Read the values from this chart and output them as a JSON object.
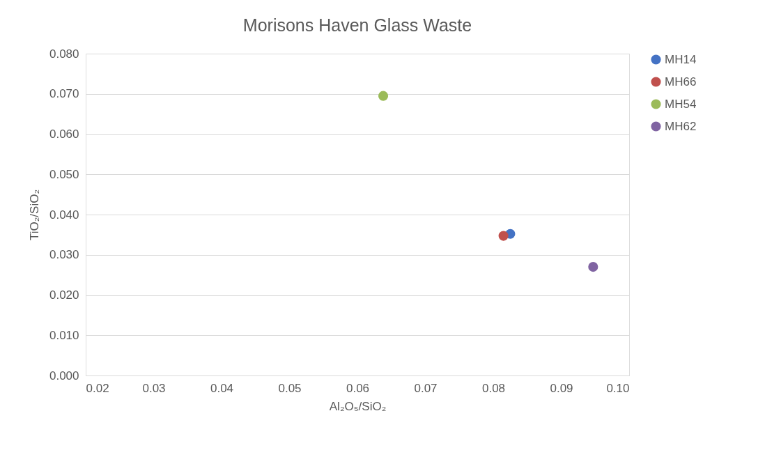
{
  "chart_data": {
    "type": "scatter",
    "title": "Morisons Haven Glass Waste",
    "xlabel": "Al₂O₅/SiO₂",
    "ylabel": "TiO₂/SiO₂",
    "series": [
      {
        "name": "MH14",
        "color": "#4472c4",
        "x": [
          0.0825
        ],
        "values": [
          0.0352
        ]
      },
      {
        "name": "MH66",
        "color": "#c0504d",
        "x": [
          0.0815
        ],
        "values": [
          0.0347
        ]
      },
      {
        "name": "MH54",
        "color": "#9bbb59",
        "x": [
          0.0638
        ],
        "values": [
          0.0695
        ]
      },
      {
        "name": "MH62",
        "color": "#8064a2",
        "x": [
          0.0947
        ],
        "values": [
          0.027
        ]
      }
    ],
    "xlim": [
      0.02,
      0.1
    ],
    "xticks": [
      {
        "value": 0.02,
        "label": "0.02"
      },
      {
        "value": 0.03,
        "label": "0.03"
      },
      {
        "value": 0.04,
        "label": "0.04"
      },
      {
        "value": 0.05,
        "label": "0.05"
      },
      {
        "value": 0.06,
        "label": "0.06"
      },
      {
        "value": 0.07,
        "label": "0.07"
      },
      {
        "value": 0.08,
        "label": "0.08"
      },
      {
        "value": 0.09,
        "label": "0.09"
      },
      {
        "value": 0.1,
        "label": "0.10"
      }
    ],
    "ylim": [
      0,
      0.08
    ],
    "yticks": [
      {
        "value": 0,
        "label": "0.000"
      },
      {
        "value": 0.01,
        "label": "0.010"
      },
      {
        "value": 0.02,
        "label": "0.020"
      },
      {
        "value": 0.03,
        "label": "0.030"
      },
      {
        "value": 0.04,
        "label": "0.040"
      },
      {
        "value": 0.05,
        "label": "0.050"
      },
      {
        "value": 0.06,
        "label": "0.060"
      },
      {
        "value": 0.07,
        "label": "0.070"
      },
      {
        "value": 0.08,
        "label": "0.080"
      }
    ],
    "grid": "y",
    "legend": "right",
    "marker": "circle"
  }
}
